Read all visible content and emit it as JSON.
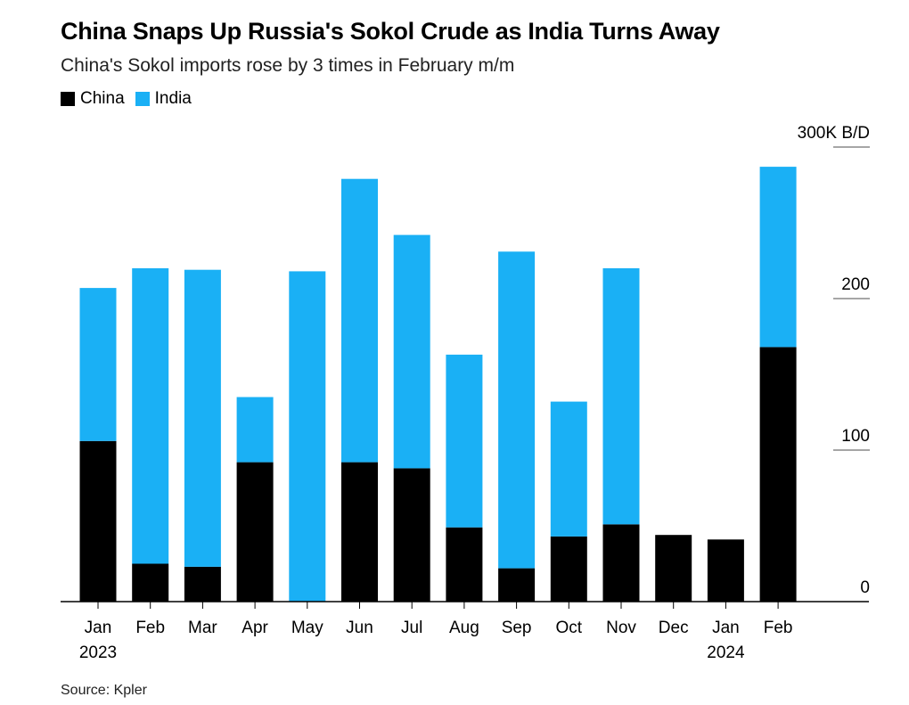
{
  "title": "China Snaps Up Russia's Sokol Crude as India Turns Away",
  "subtitle": "China's Sokol imports rose by 3 times in February m/m",
  "source": "Source: Kpler",
  "colors": {
    "china": "#000000",
    "india": "#1ab0f5",
    "grid": "#888888"
  },
  "legend": [
    {
      "label": "China",
      "color": "#000000"
    },
    {
      "label": "India",
      "color": "#1ab0f5"
    }
  ],
  "chart_data": {
    "type": "bar",
    "stacked": true,
    "categories": [
      "Jan",
      "Feb",
      "Mar",
      "Apr",
      "May",
      "Jun",
      "Jul",
      "Aug",
      "Sep",
      "Oct",
      "Nov",
      "Dec",
      "Jan",
      "Feb"
    ],
    "year_labels": [
      "2023",
      "",
      "",
      "",
      "",
      "",
      "",
      "",
      "",
      "",
      "",
      "",
      "2024",
      ""
    ],
    "series": [
      {
        "name": "China",
        "values": [
          106,
          25,
          23,
          92,
          0,
          92,
          88,
          49,
          22,
          43,
          51,
          44,
          41,
          168
        ]
      },
      {
        "name": "India",
        "values": [
          101,
          195,
          196,
          43,
          218,
          187,
          154,
          114,
          209,
          89,
          169,
          0,
          0,
          119
        ]
      }
    ],
    "ylim": [
      0,
      300
    ],
    "yticks": [
      0,
      100,
      200,
      300
    ],
    "ytick_labels": [
      "0",
      "100",
      "200",
      "300K B/D"
    ],
    "xlabel": "",
    "ylabel": "",
    "legend_position": "top-left"
  }
}
